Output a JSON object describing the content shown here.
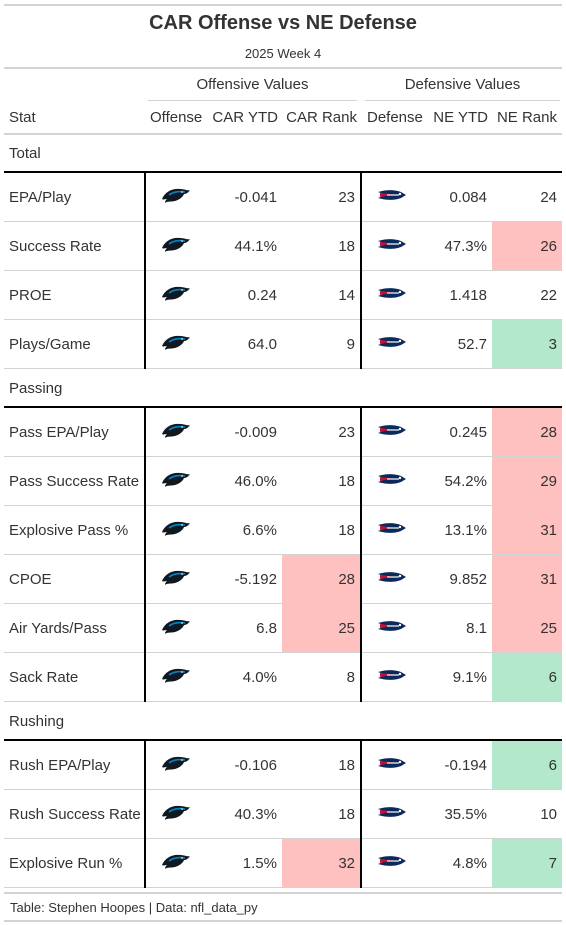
{
  "title": "CAR Offense vs NE Defense",
  "subtitle": "2025 Week 4",
  "spanners": {
    "offense": "Offensive Values",
    "defense": "Defensive Values"
  },
  "columns": {
    "stat": "Stat",
    "offense": "Offense",
    "car_ytd": "CAR YTD",
    "car_rank": "CAR Rank",
    "defense": "Defense",
    "ne_ytd": "NE YTD",
    "ne_rank": "NE Rank"
  },
  "colors": {
    "bad": "#ffc0c0",
    "good": "#b3e8cc",
    "panther_blue": "#0085ca",
    "patriots_navy": "#0b2a5b",
    "patriots_red": "#c8102e"
  },
  "groups": [
    {
      "label": "Total",
      "rows": [
        {
          "stat": "EPA/Play",
          "car_ytd": "-0.041",
          "car_rank": "23",
          "car_hl": "",
          "ne_ytd": "0.084",
          "ne_rank": "24",
          "ne_hl": ""
        },
        {
          "stat": "Success Rate",
          "car_ytd": "44.1%",
          "car_rank": "18",
          "car_hl": "",
          "ne_ytd": "47.3%",
          "ne_rank": "26",
          "ne_hl": "bad"
        },
        {
          "stat": "PROE",
          "car_ytd": "0.24",
          "car_rank": "14",
          "car_hl": "",
          "ne_ytd": "1.418",
          "ne_rank": "22",
          "ne_hl": ""
        },
        {
          "stat": "Plays/Game",
          "car_ytd": "64.0",
          "car_rank": "9",
          "car_hl": "",
          "ne_ytd": "52.7",
          "ne_rank": "3",
          "ne_hl": "good"
        }
      ]
    },
    {
      "label": "Passing",
      "rows": [
        {
          "stat": "Pass EPA/Play",
          "car_ytd": "-0.009",
          "car_rank": "23",
          "car_hl": "",
          "ne_ytd": "0.245",
          "ne_rank": "28",
          "ne_hl": "bad"
        },
        {
          "stat": "Pass Success Rate",
          "car_ytd": "46.0%",
          "car_rank": "18",
          "car_hl": "",
          "ne_ytd": "54.2%",
          "ne_rank": "29",
          "ne_hl": "bad"
        },
        {
          "stat": "Explosive Pass %",
          "car_ytd": "6.6%",
          "car_rank": "18",
          "car_hl": "",
          "ne_ytd": "13.1%",
          "ne_rank": "31",
          "ne_hl": "bad"
        },
        {
          "stat": "CPOE",
          "car_ytd": "-5.192",
          "car_rank": "28",
          "car_hl": "bad",
          "ne_ytd": "9.852",
          "ne_rank": "31",
          "ne_hl": "bad"
        },
        {
          "stat": "Air Yards/Pass",
          "car_ytd": "6.8",
          "car_rank": "25",
          "car_hl": "bad",
          "ne_ytd": "8.1",
          "ne_rank": "25",
          "ne_hl": "bad"
        },
        {
          "stat": "Sack Rate",
          "car_ytd": "4.0%",
          "car_rank": "8",
          "car_hl": "",
          "ne_ytd": "9.1%",
          "ne_rank": "6",
          "ne_hl": "good"
        }
      ]
    },
    {
      "label": "Rushing",
      "rows": [
        {
          "stat": "Rush EPA/Play",
          "car_ytd": "-0.106",
          "car_rank": "18",
          "car_hl": "",
          "ne_ytd": "-0.194",
          "ne_rank": "6",
          "ne_hl": "good"
        },
        {
          "stat": "Rush Success Rate",
          "car_ytd": "40.3%",
          "car_rank": "18",
          "car_hl": "",
          "ne_ytd": "35.5%",
          "ne_rank": "10",
          "ne_hl": ""
        },
        {
          "stat": "Explosive Run %",
          "car_ytd": "1.5%",
          "car_rank": "32",
          "car_hl": "bad",
          "ne_ytd": "4.8%",
          "ne_rank": "7",
          "ne_hl": "good"
        }
      ]
    }
  ],
  "icons": {
    "offense": "panthers-logo-icon",
    "defense": "patriots-logo-icon"
  },
  "footer": "Table: Stephen Hoopes | Data: nfl_data_py"
}
